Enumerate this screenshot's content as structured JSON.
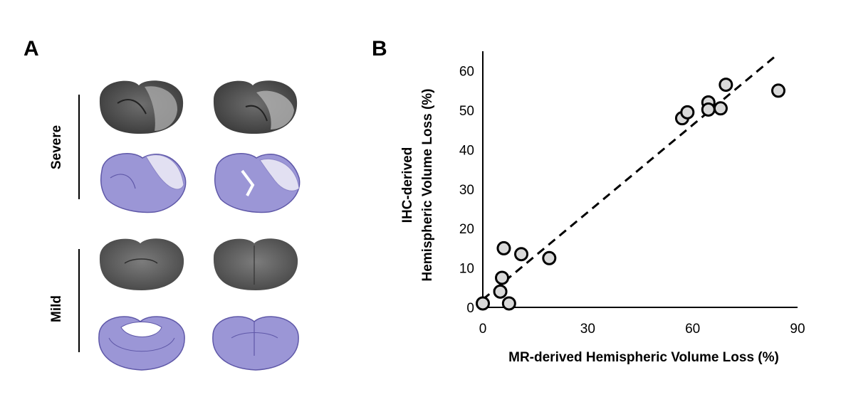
{
  "panels": {
    "a_letter": "A",
    "b_letter": "B",
    "group_severe": "Severe",
    "group_mild": "Mild"
  },
  "colors": {
    "mri_dark": "#3a3a3a",
    "mri_light": "#8a8a8a",
    "stain_fill": "#9b96d6",
    "stain_edge": "#5f58a8",
    "marker_fill": "#d9d9d9"
  },
  "chart_data": {
    "type": "scatter",
    "xlabel": "MR-derived Hemispheric Volume Loss (%)",
    "ylabel": [
      "IHC-derived",
      "Hemispheric Volume Loss (%)"
    ],
    "xlim": [
      0,
      90
    ],
    "ylim": [
      0,
      65
    ],
    "xticks": [
      0,
      30,
      60,
      90
    ],
    "yticks": [
      0,
      10,
      20,
      30,
      40,
      50,
      60
    ],
    "grid": false,
    "trendline": {
      "style": "dashed",
      "x": [
        0,
        84
      ],
      "y": [
        2,
        64
      ]
    },
    "points": [
      {
        "x": 0,
        "y": 1
      },
      {
        "x": 7.5,
        "y": 1
      },
      {
        "x": 5,
        "y": 4
      },
      {
        "x": 5.5,
        "y": 7.5
      },
      {
        "x": 6,
        "y": 15
      },
      {
        "x": 11,
        "y": 13.5
      },
      {
        "x": 19,
        "y": 12.5
      },
      {
        "x": 57,
        "y": 48
      },
      {
        "x": 58.5,
        "y": 49.5
      },
      {
        "x": 64.5,
        "y": 52
      },
      {
        "x": 64.5,
        "y": 50.2
      },
      {
        "x": 68,
        "y": 50.5
      },
      {
        "x": 69.5,
        "y": 56.5
      },
      {
        "x": 84.5,
        "y": 55
      }
    ]
  }
}
